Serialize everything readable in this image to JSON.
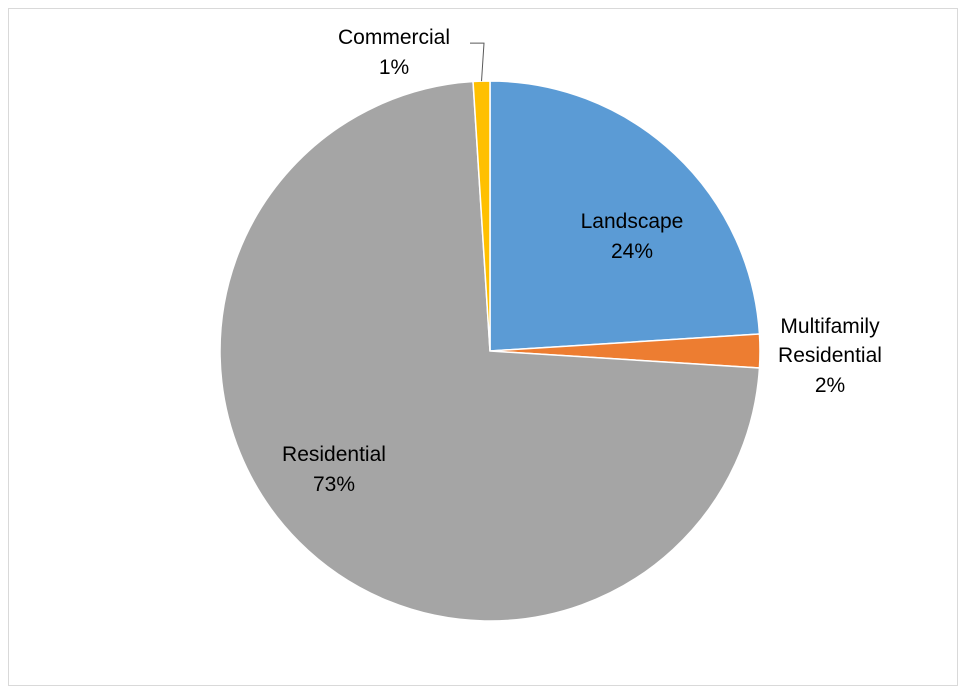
{
  "chart_data": {
    "type": "pie",
    "start_angle_deg": 0,
    "direction": "clockwise",
    "legend": "none",
    "slices": [
      {
        "name": "Landscape",
        "label": "Landscape",
        "percent_label": "24%",
        "value": 24,
        "color": "#5B9BD5"
      },
      {
        "name": "Multifamily Residential",
        "label": "Multifamily Residential",
        "percent_label": "2%",
        "value": 2,
        "color": "#ED7D31"
      },
      {
        "name": "Residential",
        "label": "Residential",
        "percent_label": "73%",
        "value": 73,
        "color": "#A5A5A5"
      },
      {
        "name": "Commercial",
        "label": "Commercial",
        "percent_label": "1%",
        "value": 1,
        "color": "#FFC000"
      }
    ]
  }
}
